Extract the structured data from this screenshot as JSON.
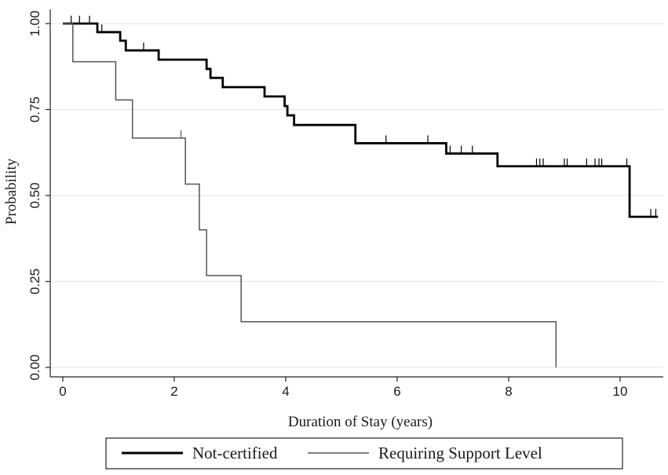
{
  "chart_data": {
    "type": "line",
    "subtype": "kaplan-meier-step",
    "title": "",
    "xlabel": "Duration of Stay (years)",
    "ylabel": "Probability",
    "xlim": [
      0,
      10.7
    ],
    "ylim": [
      0,
      1
    ],
    "xticks": [
      0,
      2,
      4,
      6,
      8,
      10
    ],
    "xtick_labels": [
      "0",
      "2",
      "4",
      "6",
      "8",
      "10"
    ],
    "yticks": [
      0,
      0.25,
      0.5,
      0.75,
      1
    ],
    "ytick_labels": [
      "0.00",
      "0.25",
      "0.50",
      "0.75",
      "1.00"
    ],
    "grid": true,
    "legend_position": "bottom",
    "series": [
      {
        "name": "Not-certified",
        "color": "#000000",
        "style": "thick",
        "steps": [
          [
            0,
            1.0
          ],
          [
            0.62,
            0.975
          ],
          [
            1.03,
            0.95
          ],
          [
            1.13,
            0.922
          ],
          [
            1.72,
            0.895
          ],
          [
            2.58,
            0.868
          ],
          [
            2.65,
            0.842
          ],
          [
            2.87,
            0.815
          ],
          [
            3.62,
            0.788
          ],
          [
            3.98,
            0.76
          ],
          [
            4.03,
            0.733
          ],
          [
            4.15,
            0.705
          ],
          [
            5.25,
            0.652
          ],
          [
            6.88,
            0.622
          ],
          [
            7.8,
            0.585
          ],
          [
            10.17,
            0.438
          ],
          [
            10.68,
            0.438
          ]
        ],
        "censored": [
          0.15,
          0.3,
          0.48,
          0.7,
          1.45,
          5.8,
          6.55,
          6.95,
          7.15,
          7.35,
          8.5,
          8.56,
          8.62,
          9.0,
          9.05,
          9.4,
          9.55,
          9.62,
          9.67,
          10.12,
          10.55,
          10.64
        ]
      },
      {
        "name": "Requiring Support Level",
        "color": "#555555",
        "style": "thin",
        "steps": [
          [
            0,
            1.0
          ],
          [
            0.18,
            0.889
          ],
          [
            0.95,
            0.778
          ],
          [
            1.25,
            0.667
          ],
          [
            2.2,
            0.533
          ],
          [
            2.45,
            0.4
          ],
          [
            2.58,
            0.267
          ],
          [
            3.2,
            0.133
          ],
          [
            8.85,
            0.133
          ],
          [
            8.85,
            0.0
          ]
        ],
        "censored": [
          2.12
        ]
      }
    ]
  },
  "legend": {
    "items": [
      {
        "label": "Not-certified"
      },
      {
        "label": "Requiring Support Level"
      }
    ]
  }
}
